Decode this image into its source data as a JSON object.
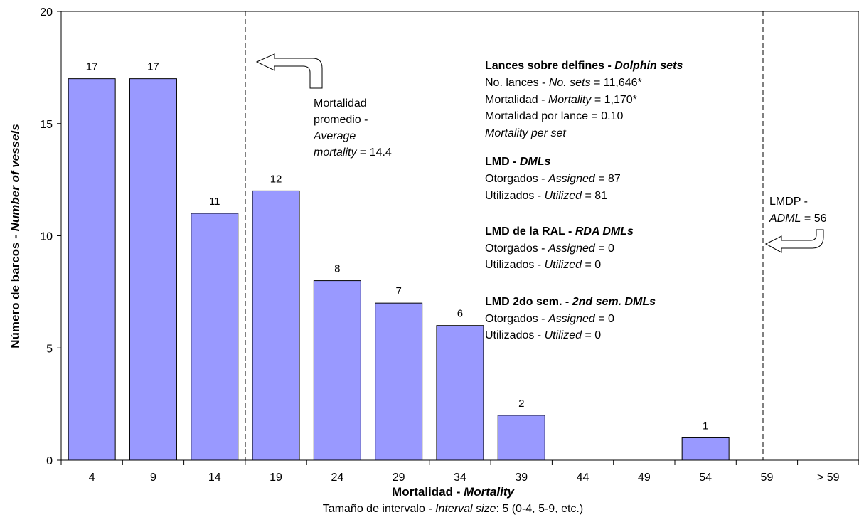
{
  "chart_data": {
    "type": "bar",
    "categories": [
      "4",
      "9",
      "14",
      "19",
      "24",
      "29",
      "34",
      "39",
      "44",
      "49",
      "54",
      "59",
      "> 59"
    ],
    "values": [
      17,
      17,
      11,
      12,
      8,
      7,
      6,
      2,
      0,
      0,
      1,
      0,
      0
    ],
    "data_labels": [
      "17",
      "17",
      "11",
      "12",
      "8",
      "7",
      "6",
      "2",
      "",
      "",
      "1",
      "",
      ""
    ],
    "ylim": [
      0,
      20
    ],
    "yticks": [
      "0",
      "5",
      "10",
      "15",
      "20"
    ],
    "ylabel": {
      "normal": "Número de barcos - ",
      "italic": "Number of vessels"
    },
    "xlabel": {
      "normal": "Mortalidad - ",
      "italic": "Mortality"
    },
    "xsublabel": {
      "pre": "Tamaño de intervalo - ",
      "italic": "Interval size",
      "post": ": 5 (0-4, 5-9, etc.)"
    },
    "bar_color": "#9999ff",
    "average_line": {
      "value": 14.4,
      "lines": [
        "Mortalidad",
        "promedio -",
        "Average",
        "mortality",
        " = 14.4"
      ]
    },
    "adml_line": {
      "value": 56,
      "lines": [
        "LMDP -",
        "ADML",
        " =  56"
      ]
    },
    "info": {
      "dolphin_title": "Lances sobre delfines - ",
      "dolphin_title_it": "Dolphin sets",
      "sets_pre": "No. lances - ",
      "sets_it": "No. sets",
      "sets_val": " = 11,646*",
      "mort_pre": "Mortalidad - ",
      "mort_it": "Mortality",
      "mort_val": " = 1,170*",
      "mps_line": "Mortalidad por lance = 0.10",
      "mps_it": "Mortality per set",
      "dml_title": "LMD - ",
      "dml_title_it": "DMLs",
      "dml_assigned_pre": "Otorgados - ",
      "dml_assigned_it": "Assigned",
      "dml_assigned_val": " = 87",
      "dml_utilized_pre": "Utilizados - ",
      "dml_utilized_it": "Utilized",
      "dml_utilized_val": " = 81",
      "rda_title": "LMD de la RAL - ",
      "rda_title_it": "RDA DMLs",
      "rda_assigned_pre": "Otorgados - ",
      "rda_assigned_it": "Assigned",
      "rda_assigned_val": " = 0",
      "rda_utilized_pre": "Utilizados - ",
      "rda_utilized_it": "Utilized",
      "rda_utilized_val": " = 0",
      "sem_title": "LMD 2do sem. - ",
      "sem_title_it": "2nd sem. DMLs",
      "sem_assigned_pre": "Otorgados - ",
      "sem_assigned_it": "Assigned",
      "sem_assigned_val": " = 0",
      "sem_utilized_pre": "Utilizados - ",
      "sem_utilized_it": "Utilized",
      "sem_utilized_val": " = 0"
    }
  }
}
